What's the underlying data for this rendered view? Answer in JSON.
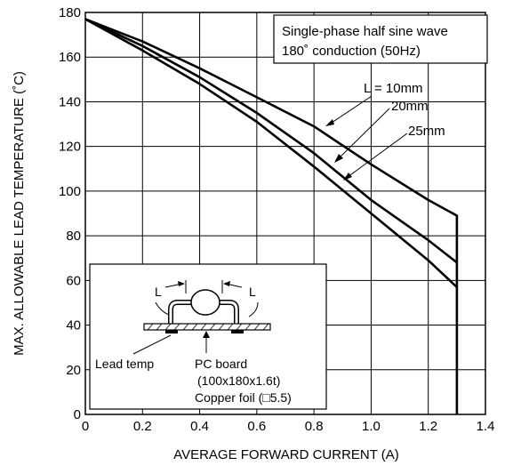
{
  "chart_data": {
    "type": "line",
    "title": "",
    "xlabel": "AVERAGE FORWARD CURRENT (A)",
    "ylabel": "MAX. ALLOWABLE LEAD TEMPERATURE (˚C)",
    "xlim": [
      0,
      1.4
    ],
    "ylim": [
      0,
      180
    ],
    "x_ticks": [
      "0",
      "0.2",
      "0.4",
      "0.6",
      "0.8",
      "1.0",
      "1.2",
      "1.4"
    ],
    "y_ticks": [
      "0",
      "20",
      "40",
      "60",
      "80",
      "100",
      "120",
      "140",
      "160",
      "180"
    ],
    "grid": true,
    "series": [
      {
        "name": "L = 10mm",
        "x": [
          0,
          0.2,
          0.4,
          0.6,
          0.8,
          1.0,
          1.2,
          1.3,
          1.3
        ],
        "y": [
          177,
          167,
          155,
          142,
          129,
          112,
          96,
          89,
          0
        ]
      },
      {
        "name": "20mm",
        "x": [
          0,
          0.2,
          0.4,
          0.6,
          0.8,
          1.0,
          1.2,
          1.3
        ],
        "y": [
          177,
          165,
          151,
          135,
          117,
          96,
          78,
          68
        ]
      },
      {
        "name": "25mm",
        "x": [
          0,
          0.2,
          0.4,
          0.6,
          0.8,
          1.0,
          1.2,
          1.3
        ],
        "y": [
          177,
          163,
          148,
          131,
          111,
          90,
          69,
          57
        ]
      }
    ],
    "annotations": {
      "condition_line1": "Single-phase half sine wave",
      "condition_line2": "180˚ conduction (50Hz)"
    },
    "inset": {
      "label_left": "L",
      "label_right": "L",
      "lead_temp": "Lead temp",
      "pc_board": "PC board",
      "pc_board_size": "(100x180x1.6t)",
      "copper_foil": "Copper foil (□5.5)"
    }
  }
}
